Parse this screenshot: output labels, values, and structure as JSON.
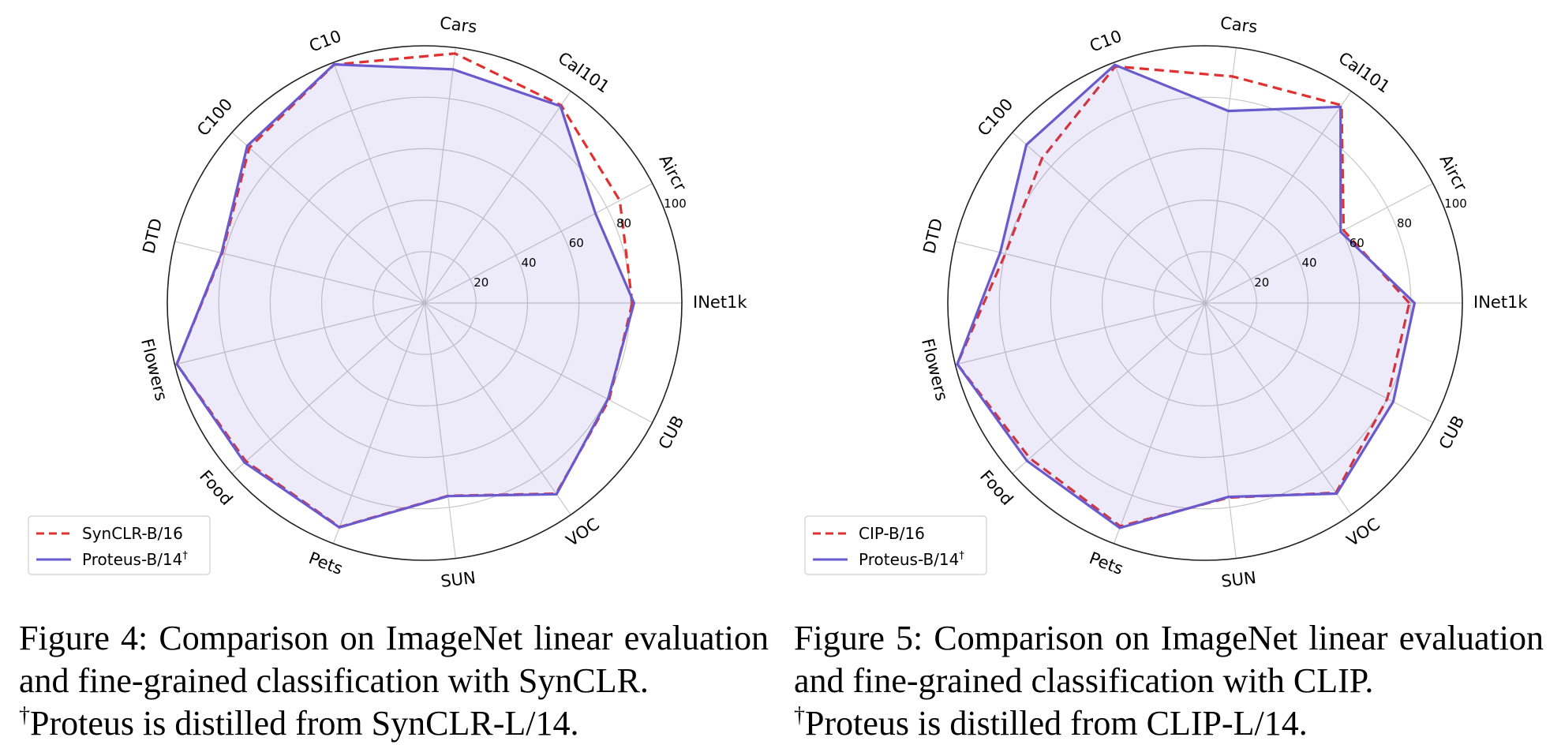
{
  "chart_data": [
    {
      "type": "radar",
      "axes": [
        "INet1k",
        "Aircr",
        "Cal101",
        "Cars",
        "C10",
        "C100",
        "DTD",
        "Flowers",
        "Food",
        "Pets",
        "SUN",
        "VOC",
        "CUB"
      ],
      "radial_ticks": [
        20,
        40,
        60,
        80,
        100
      ],
      "rlim": [
        0,
        100
      ],
      "grid": true,
      "legend_position": "bottom-left",
      "series": [
        {
          "name": "SynCLR-B/16",
          "color": "#e03030",
          "style": "dashed",
          "values": [
            80.7,
            85.7,
            93.4,
            97.7,
            99.1,
            91.0,
            81.0,
            99.2,
            92.8,
            93.1,
            75.5,
            90.0,
            81.0
          ]
        },
        {
          "name": "Proteus-B/14†",
          "color": "#6a5acd",
          "style": "solid",
          "values": [
            81.4,
            75.0,
            93.0,
            91.5,
            99.2,
            92.1,
            81.3,
            99.2,
            93.5,
            93.3,
            75.6,
            90.3,
            80.5
          ]
        }
      ]
    },
    {
      "type": "radar",
      "axes": [
        "INet1k",
        "Aircr",
        "Cal101",
        "Cars",
        "C10",
        "C100",
        "DTD",
        "Flowers",
        "Food",
        "Pets",
        "SUN",
        "VOC",
        "CUB"
      ],
      "radial_ticks": [
        20,
        40,
        60,
        80,
        100
      ],
      "rlim": [
        0,
        100
      ],
      "grid": true,
      "legend_position": "bottom-left",
      "series": [
        {
          "name": "CIP-B/16",
          "color": "#e03030",
          "style": "dashed",
          "values": [
            79.4,
            60.8,
            93.4,
            88.7,
            98.4,
            84.7,
            80.0,
            99.2,
            91.0,
            92.8,
            76.2,
            89.6,
            80.0
          ]
        },
        {
          "name": "Proteus-B/14†",
          "color": "#6a5acd",
          "style": "solid",
          "values": [
            81.4,
            59.5,
            92.7,
            75.2,
            99.0,
            92.8,
            82.0,
            99.2,
            92.5,
            93.5,
            75.9,
            90.0,
            82.6
          ]
        }
      ]
    }
  ],
  "captions": [
    {
      "label": "Figure 4: ",
      "text": "Comparison on ImageNet linear evaluation and fine-grained classification with SynCLR.",
      "footnote_mark": "†",
      "footnote": "Proteus is distilled from SynCLR-L/14."
    },
    {
      "label": "Figure 5: ",
      "text": "Comparison on ImageNet linear evaluation and fine-grained classification with CLIP.",
      "footnote_mark": "†",
      "footnote": "Proteus is distilled from CLIP-L/14."
    }
  ]
}
